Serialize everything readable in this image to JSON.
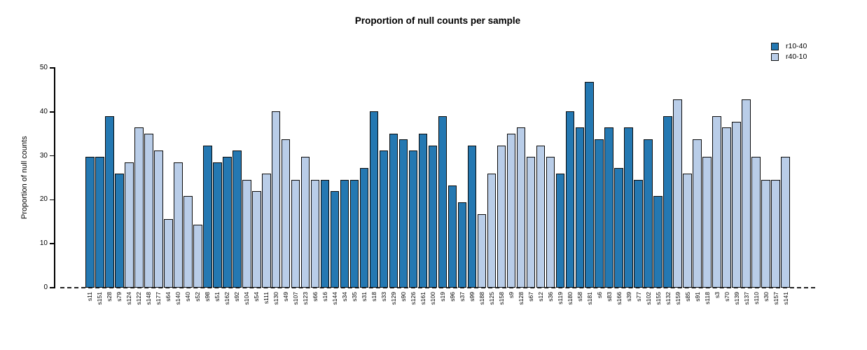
{
  "colors": {
    "series_dark": "#2478b2",
    "series_light": "#b9cde8",
    "bar_border": "#0b0b0b"
  },
  "chart_data": {
    "type": "bar",
    "title": "Proportion of null counts per sample",
    "xlabel": "",
    "ylabel": "Proportion of null counts",
    "ylim": [
      0,
      50
    ],
    "yticks": [
      0,
      10,
      20,
      30,
      40,
      50
    ],
    "grid": false,
    "legend_position": "top-right",
    "legend": [
      {
        "name": "r10-40",
        "color": "#2478b2"
      },
      {
        "name": "r40-10",
        "color": "#b9cde8"
      }
    ],
    "bars": [
      {
        "label": "s11",
        "value": 29.8,
        "series": "r10-40"
      },
      {
        "label": "s151",
        "value": 29.8,
        "series": "r10-40"
      },
      {
        "label": "s28",
        "value": 39.0,
        "series": "r10-40"
      },
      {
        "label": "s79",
        "value": 25.9,
        "series": "r10-40"
      },
      {
        "label": "s124",
        "value": 28.5,
        "series": "r40-10"
      },
      {
        "label": "s122",
        "value": 36.4,
        "series": "r40-10"
      },
      {
        "label": "s148",
        "value": 35.0,
        "series": "r40-10"
      },
      {
        "label": "s177",
        "value": 31.2,
        "series": "r40-10"
      },
      {
        "label": "s64",
        "value": 15.6,
        "series": "r40-10"
      },
      {
        "label": "s140",
        "value": 28.5,
        "series": "r40-10"
      },
      {
        "label": "s40",
        "value": 20.8,
        "series": "r40-10"
      },
      {
        "label": "s52",
        "value": 14.3,
        "series": "r40-10"
      },
      {
        "label": "s98",
        "value": 32.4,
        "series": "r10-40"
      },
      {
        "label": "s51",
        "value": 28.5,
        "series": "r10-40"
      },
      {
        "label": "s162",
        "value": 29.8,
        "series": "r10-40"
      },
      {
        "label": "s92",
        "value": 31.2,
        "series": "r10-40"
      },
      {
        "label": "s104",
        "value": 24.5,
        "series": "r40-10"
      },
      {
        "label": "s54",
        "value": 22.0,
        "series": "r40-10"
      },
      {
        "label": "s111",
        "value": 26.0,
        "series": "r40-10"
      },
      {
        "label": "s130",
        "value": 40.2,
        "series": "r40-10"
      },
      {
        "label": "s49",
        "value": 33.8,
        "series": "r40-10"
      },
      {
        "label": "s107",
        "value": 24.5,
        "series": "r40-10"
      },
      {
        "label": "s123",
        "value": 29.8,
        "series": "r40-10"
      },
      {
        "label": "s66",
        "value": 24.5,
        "series": "r40-10"
      },
      {
        "label": "s16",
        "value": 24.5,
        "series": "r10-40"
      },
      {
        "label": "s144",
        "value": 22.0,
        "series": "r10-40"
      },
      {
        "label": "s34",
        "value": 24.5,
        "series": "r10-40"
      },
      {
        "label": "s35",
        "value": 24.5,
        "series": "r10-40"
      },
      {
        "label": "s31",
        "value": 27.2,
        "series": "r10-40"
      },
      {
        "label": "s18",
        "value": 40.2,
        "series": "r10-40"
      },
      {
        "label": "s33",
        "value": 31.2,
        "series": "r10-40"
      },
      {
        "label": "s129",
        "value": 35.0,
        "series": "r10-40"
      },
      {
        "label": "s90",
        "value": 33.8,
        "series": "r10-40"
      },
      {
        "label": "s126",
        "value": 31.2,
        "series": "r10-40"
      },
      {
        "label": "s161",
        "value": 35.0,
        "series": "r10-40"
      },
      {
        "label": "s100",
        "value": 32.4,
        "series": "r10-40"
      },
      {
        "label": "s19",
        "value": 39.0,
        "series": "r10-40"
      },
      {
        "label": "s96",
        "value": 23.3,
        "series": "r10-40"
      },
      {
        "label": "s37",
        "value": 19.5,
        "series": "r10-40"
      },
      {
        "label": "s99",
        "value": 32.4,
        "series": "r10-40"
      },
      {
        "label": "s188",
        "value": 16.8,
        "series": "r40-10"
      },
      {
        "label": "s125",
        "value": 26.0,
        "series": "r40-10"
      },
      {
        "label": "s158",
        "value": 32.4,
        "series": "r40-10"
      },
      {
        "label": "s9",
        "value": 35.0,
        "series": "r40-10"
      },
      {
        "label": "s128",
        "value": 36.4,
        "series": "r40-10"
      },
      {
        "label": "s67",
        "value": 29.8,
        "series": "r40-10"
      },
      {
        "label": "s12",
        "value": 32.4,
        "series": "r40-10"
      },
      {
        "label": "s36",
        "value": 29.8,
        "series": "r40-10"
      },
      {
        "label": "s119",
        "value": 26.0,
        "series": "r10-40"
      },
      {
        "label": "s180",
        "value": 40.2,
        "series": "r10-40"
      },
      {
        "label": "s58",
        "value": 36.4,
        "series": "r10-40"
      },
      {
        "label": "s181",
        "value": 46.8,
        "series": "r10-40"
      },
      {
        "label": "s6",
        "value": 33.8,
        "series": "r10-40"
      },
      {
        "label": "s83",
        "value": 36.4,
        "series": "r10-40"
      },
      {
        "label": "s166",
        "value": 27.2,
        "series": "r10-40"
      },
      {
        "label": "s39",
        "value": 36.4,
        "series": "r10-40"
      },
      {
        "label": "s77",
        "value": 24.5,
        "series": "r10-40"
      },
      {
        "label": "s102",
        "value": 33.8,
        "series": "r10-40"
      },
      {
        "label": "s155",
        "value": 20.8,
        "series": "r10-40"
      },
      {
        "label": "s132",
        "value": 39.0,
        "series": "r10-40"
      },
      {
        "label": "s159",
        "value": 42.8,
        "series": "r40-10"
      },
      {
        "label": "s85",
        "value": 26.0,
        "series": "r40-10"
      },
      {
        "label": "s91",
        "value": 33.8,
        "series": "r40-10"
      },
      {
        "label": "s118",
        "value": 29.8,
        "series": "r40-10"
      },
      {
        "label": "s3",
        "value": 39.0,
        "series": "r40-10"
      },
      {
        "label": "s70",
        "value": 36.4,
        "series": "r40-10"
      },
      {
        "label": "s139",
        "value": 37.7,
        "series": "r40-10"
      },
      {
        "label": "s137",
        "value": 42.8,
        "series": "r40-10"
      },
      {
        "label": "s110",
        "value": 29.8,
        "series": "r40-10"
      },
      {
        "label": "s30",
        "value": 24.5,
        "series": "r40-10"
      },
      {
        "label": "s157",
        "value": 24.5,
        "series": "r40-10"
      },
      {
        "label": "s141",
        "value": 29.8,
        "series": "r40-10"
      }
    ]
  }
}
